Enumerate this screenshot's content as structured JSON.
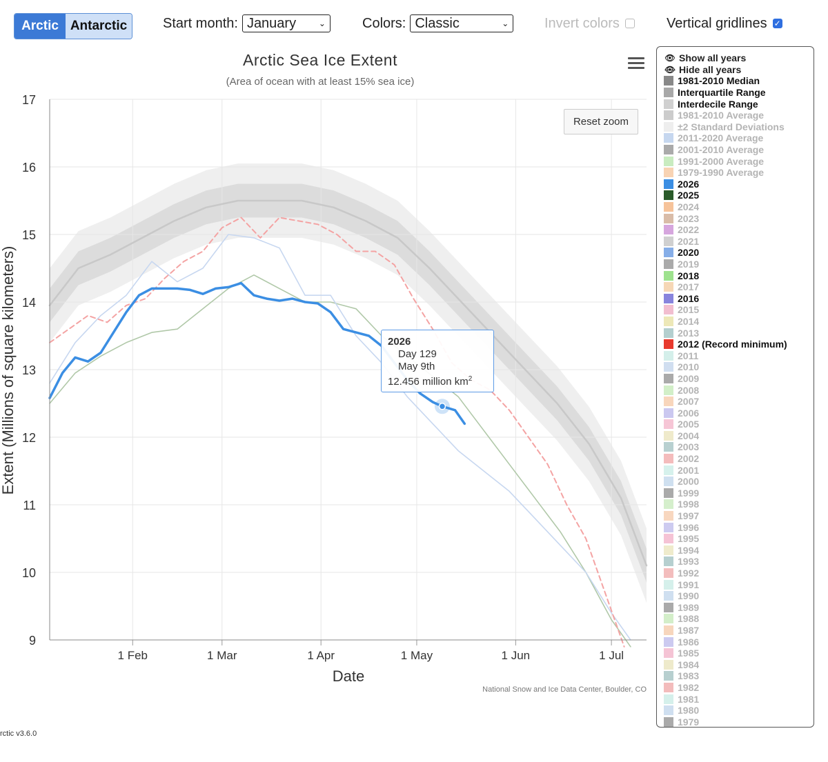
{
  "toolbar": {
    "hemisphere_buttons": [
      "Arctic",
      "Antarctic"
    ],
    "start_month_label": "Start month:",
    "start_month_value": "January",
    "colors_label": "Colors:",
    "colors_value": "Classic",
    "invert_label": "Invert colors",
    "invert_checked": false,
    "gridlines_label": "Vertical gridlines",
    "gridlines_checked": true
  },
  "chart_data": {
    "type": "line",
    "title": "Arctic Sea Ice Extent",
    "subtitle": "(Area of ocean with at least 15% sea ice)",
    "xlabel": "Date",
    "ylabel": "Extent (Millions of square kilometers)",
    "ylim": [
      9,
      17
    ],
    "y_ticks": [
      9,
      10,
      11,
      12,
      13,
      14,
      15,
      16,
      17
    ],
    "x_ticks": [
      "1 Feb",
      "1 Mar",
      "1 Apr",
      "1 May",
      "1 Jun",
      "1 Jul"
    ],
    "x_tick_days": [
      32,
      60,
      91,
      121,
      152,
      182
    ],
    "x_range_days": [
      6,
      193
    ],
    "vertical_gridlines": true,
    "credit": "National Snow and Ice Data Center, Boulder, CO",
    "series": [
      {
        "name": "1981-2010 Median",
        "color": "#c8c8c8",
        "days": [
          6,
          15,
          25,
          35,
          45,
          55,
          65,
          75,
          85,
          95,
          105,
          115,
          125,
          135,
          145,
          155,
          165,
          175,
          185,
          193
        ],
        "values": [
          13.95,
          14.5,
          14.7,
          14.95,
          15.2,
          15.4,
          15.5,
          15.5,
          15.5,
          15.4,
          15.2,
          14.95,
          14.5,
          14.0,
          13.5,
          13.0,
          12.5,
          11.9,
          11.1,
          10.1
        ]
      },
      {
        "name": "2026",
        "color": "#3b8ee3",
        "days": [
          6,
          10,
          14,
          18,
          22,
          26,
          30,
          34,
          38,
          42,
          46,
          50,
          54,
          58,
          62,
          66,
          70,
          74,
          78,
          82,
          86,
          90,
          94,
          98,
          102,
          106,
          110,
          114,
          118,
          122,
          126,
          129,
          133,
          136
        ],
        "values": [
          12.58,
          12.95,
          13.18,
          13.12,
          13.25,
          13.55,
          13.85,
          14.1,
          14.2,
          14.2,
          14.2,
          14.18,
          14.12,
          14.2,
          14.22,
          14.28,
          14.1,
          14.05,
          14.02,
          14.05,
          14.0,
          13.98,
          13.85,
          13.6,
          13.55,
          13.5,
          13.35,
          13.1,
          12.85,
          12.65,
          12.52,
          12.456,
          12.4,
          12.2
        ]
      },
      {
        "name": "2012 (Record minimum)",
        "color": "#f4a3a3",
        "dashed": true,
        "days": [
          6,
          12,
          18,
          24,
          30,
          36,
          42,
          48,
          54,
          60,
          66,
          72,
          78,
          84,
          90,
          96,
          102,
          108,
          114,
          120,
          126,
          132,
          138,
          144,
          150,
          156,
          162,
          168,
          174,
          180,
          186
        ],
        "values": [
          13.4,
          13.6,
          13.8,
          13.7,
          13.95,
          14.05,
          14.35,
          14.6,
          14.75,
          15.1,
          15.25,
          14.95,
          15.25,
          15.2,
          15.15,
          15.0,
          14.75,
          14.75,
          14.55,
          14.05,
          13.6,
          13.1,
          12.85,
          12.7,
          12.4,
          12.0,
          11.6,
          11.0,
          10.5,
          9.7,
          8.9
        ]
      },
      {
        "name": "2025",
        "color": "#b0c8a8",
        "days": [
          6,
          14,
          22,
          30,
          38,
          46,
          54,
          62,
          70,
          78,
          86,
          94,
          102,
          110,
          118,
          126,
          134,
          142,
          150,
          158,
          166,
          174,
          182,
          188
        ],
        "values": [
          12.5,
          12.95,
          13.2,
          13.4,
          13.55,
          13.6,
          13.9,
          14.2,
          14.4,
          14.2,
          14.0,
          14.0,
          13.9,
          13.5,
          13.2,
          12.9,
          12.6,
          12.1,
          11.6,
          11.1,
          10.6,
          10.0,
          9.3,
          8.9
        ]
      },
      {
        "name": "2020",
        "color": "#c7d7f0",
        "days": [
          6,
          14,
          22,
          30,
          38,
          46,
          54,
          62,
          70,
          78,
          86,
          94,
          102,
          110,
          118,
          126,
          134,
          142,
          150,
          158,
          166,
          174,
          182,
          188
        ],
        "values": [
          12.8,
          13.4,
          13.8,
          14.1,
          14.6,
          14.3,
          14.5,
          15.0,
          14.95,
          14.8,
          14.1,
          14.1,
          13.5,
          13.1,
          12.6,
          12.2,
          11.8,
          11.5,
          11.2,
          10.8,
          10.4,
          10.0,
          9.4,
          9.0
        ]
      }
    ],
    "interquartile_band": {
      "days": [
        6,
        15,
        25,
        35,
        45,
        55,
        65,
        75,
        85,
        95,
        105,
        115,
        125,
        135,
        145,
        155,
        165,
        175,
        185,
        193
      ],
      "low": [
        13.7,
        14.25,
        14.45,
        14.7,
        14.95,
        15.15,
        15.25,
        15.25,
        15.25,
        15.15,
        14.95,
        14.7,
        14.25,
        13.75,
        13.25,
        12.75,
        12.25,
        11.65,
        10.85,
        9.85
      ],
      "high": [
        14.2,
        14.75,
        14.95,
        15.2,
        15.45,
        15.65,
        15.75,
        15.75,
        15.75,
        15.65,
        15.45,
        15.2,
        14.75,
        14.25,
        13.75,
        13.25,
        12.75,
        12.15,
        11.35,
        10.35
      ]
    },
    "interdecile_band": {
      "days": [
        6,
        15,
        25,
        35,
        45,
        55,
        65,
        75,
        85,
        95,
        105,
        115,
        125,
        135,
        145,
        155,
        165,
        175,
        185,
        193
      ],
      "low": [
        13.4,
        13.95,
        14.15,
        14.4,
        14.65,
        14.85,
        14.95,
        14.95,
        14.95,
        14.85,
        14.65,
        14.4,
        13.95,
        13.45,
        12.95,
        12.45,
        11.95,
        11.35,
        10.55,
        9.55
      ],
      "high": [
        14.5,
        15.05,
        15.25,
        15.5,
        15.75,
        15.95,
        16.05,
        16.05,
        16.05,
        15.95,
        15.75,
        15.5,
        15.05,
        14.55,
        14.05,
        13.55,
        13.05,
        12.45,
        11.65,
        10.65
      ]
    },
    "tooltip": {
      "year": "2026",
      "day": "Day 129",
      "date": "May 9th",
      "value": "12.456 million km",
      "unit_sup": "2",
      "point_day": 129,
      "point_value": 12.456
    },
    "reset_zoom_label": "Reset zoom"
  },
  "legend": {
    "show_all": "Show all years",
    "hide_all": "Hide all years",
    "items": [
      {
        "label": "1981-2010 Median",
        "color": "#888888",
        "active": true
      },
      {
        "label": "Interquartile Range",
        "color": "#a8a8a8",
        "active": true
      },
      {
        "label": "Interdecile Range",
        "color": "#d0d0d0",
        "active": true
      },
      {
        "label": "1981-2010 Average",
        "color": "#cccccc",
        "active": false
      },
      {
        "label": "±2 Standard Deviations",
        "color": "#eeeeee",
        "active": false
      },
      {
        "label": "2011-2020 Average",
        "color": "#c6d7ef",
        "active": false
      },
      {
        "label": "2001-2010 Average",
        "color": "#aaaaaa",
        "active": false
      },
      {
        "label": "1991-2000 Average",
        "color": "#c9ecc0",
        "active": false
      },
      {
        "label": "1979-1990 Average",
        "color": "#f8d3b3",
        "active": false
      },
      {
        "label": "2026",
        "color": "#3b8ee3",
        "active": true
      },
      {
        "label": "2025",
        "color": "#2a5b2a",
        "active": true
      },
      {
        "label": "2024",
        "color": "#f6c39a",
        "active": false
      },
      {
        "label": "2023",
        "color": "#d9bca8",
        "active": false
      },
      {
        "label": "2022",
        "color": "#d6a6de",
        "active": false
      },
      {
        "label": "2021",
        "color": "#d0d0d0",
        "active": false
      },
      {
        "label": "2020",
        "color": "#86aee8",
        "active": true
      },
      {
        "label": "2019",
        "color": "#aaaaaa",
        "active": false
      },
      {
        "label": "2018",
        "color": "#9ee28e",
        "active": true
      },
      {
        "label": "2017",
        "color": "#f6d7b6",
        "active": false
      },
      {
        "label": "2016",
        "color": "#8884dd",
        "active": true
      },
      {
        "label": "2015",
        "color": "#f2bed0",
        "active": false
      },
      {
        "label": "2014",
        "color": "#ede8b8",
        "active": false
      },
      {
        "label": "2013",
        "color": "#b4cfcf",
        "active": false
      },
      {
        "label": "2012 (Record minimum)",
        "color": "#e83a2e",
        "active": true
      },
      {
        "label": "2011",
        "color": "#d4efea",
        "active": false
      },
      {
        "label": "2010",
        "color": "#d0def0",
        "active": false
      },
      {
        "label": "2009",
        "color": "#aaaaaa",
        "active": false
      },
      {
        "label": "2008",
        "color": "#d2efc8",
        "active": false
      },
      {
        "label": "2007",
        "color": "#f8d6bc",
        "active": false
      },
      {
        "label": "2006",
        "color": "#cbc8f0",
        "active": false
      },
      {
        "label": "2005",
        "color": "#f6c6d6",
        "active": false
      },
      {
        "label": "2004",
        "color": "#efeacb",
        "active": false
      },
      {
        "label": "2003",
        "color": "#b8d0d0",
        "active": false
      },
      {
        "label": "2002",
        "color": "#f4bcbc",
        "active": false
      },
      {
        "label": "2001",
        "color": "#d6f1ec",
        "active": false
      },
      {
        "label": "2000",
        "color": "#cfe0f0",
        "active": false
      },
      {
        "label": "1999",
        "color": "#aaaaaa",
        "active": false
      },
      {
        "label": "1998",
        "color": "#d5efcc",
        "active": false
      },
      {
        "label": "1997",
        "color": "#f8d7bf",
        "active": false
      },
      {
        "label": "1996",
        "color": "#cdcbf0",
        "active": false
      },
      {
        "label": "1995",
        "color": "#f5c3d5",
        "active": false
      },
      {
        "label": "1994",
        "color": "#efebcc",
        "active": false
      },
      {
        "label": "1993",
        "color": "#b6cfcf",
        "active": false
      },
      {
        "label": "1992",
        "color": "#f3bdbd",
        "active": false
      },
      {
        "label": "1991",
        "color": "#d5f0eb",
        "active": false
      },
      {
        "label": "1990",
        "color": "#cfdff0",
        "active": false
      },
      {
        "label": "1989",
        "color": "#aaaaaa",
        "active": false
      },
      {
        "label": "1988",
        "color": "#d3eec9",
        "active": false
      },
      {
        "label": "1987",
        "color": "#f7d6bd",
        "active": false
      },
      {
        "label": "1986",
        "color": "#cccaf0",
        "active": false
      },
      {
        "label": "1985",
        "color": "#f5c4d5",
        "active": false
      },
      {
        "label": "1984",
        "color": "#eeeacb",
        "active": false
      },
      {
        "label": "1983",
        "color": "#b7cfcf",
        "active": false
      },
      {
        "label": "1982",
        "color": "#f3bcbc",
        "active": false
      },
      {
        "label": "1981",
        "color": "#d5f0eb",
        "active": false
      },
      {
        "label": "1980",
        "color": "#cfdff0",
        "active": false
      },
      {
        "label": "1979",
        "color": "#aaaaaa",
        "active": false
      }
    ]
  },
  "footer": {
    "version": "rctic v3.6.0"
  }
}
